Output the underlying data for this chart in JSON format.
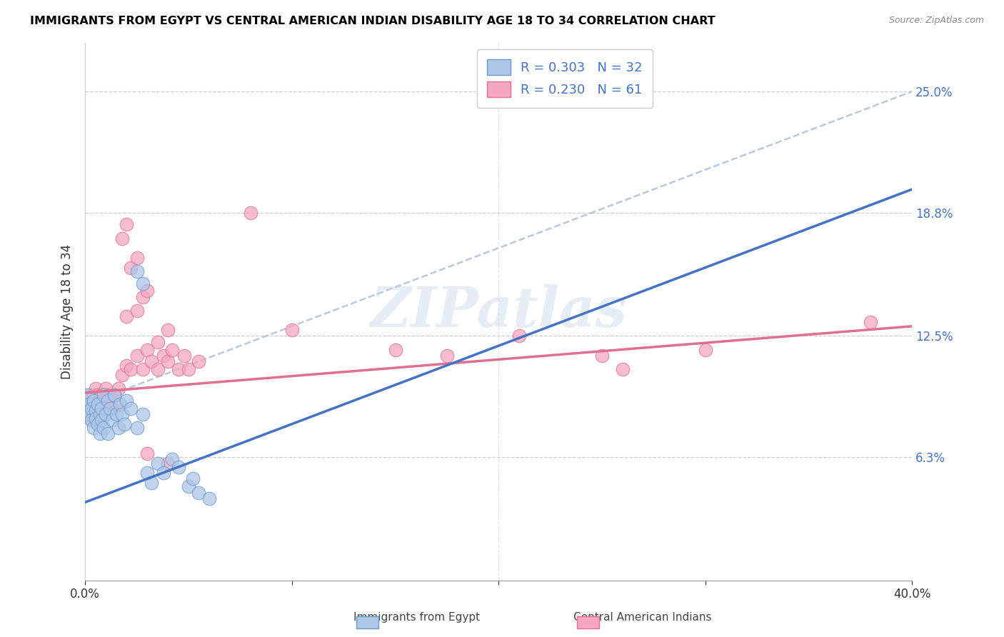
{
  "title": "IMMIGRANTS FROM EGYPT VS CENTRAL AMERICAN INDIAN DISABILITY AGE 18 TO 34 CORRELATION CHART",
  "source": "Source: ZipAtlas.com",
  "ylabel": "Disability Age 18 to 34",
  "ytick_labels": [
    "6.3%",
    "12.5%",
    "18.8%",
    "25.0%"
  ],
  "ytick_values": [
    0.063,
    0.125,
    0.188,
    0.25
  ],
  "xlim": [
    0.0,
    0.4
  ],
  "ylim": [
    0.0,
    0.275
  ],
  "watermark": "ZIPatlas",
  "egypt_color": "#aec6e8",
  "central_color": "#f4a7be",
  "egypt_edge_color": "#6699cc",
  "central_edge_color": "#e07090",
  "egypt_line_color": "#4472c4",
  "central_line_color": "#e07090",
  "dashed_line_color": "#aabbd4",
  "egypt_scatter": [
    [
      0.001,
      0.095
    ],
    [
      0.002,
      0.09
    ],
    [
      0.002,
      0.085
    ],
    [
      0.003,
      0.088
    ],
    [
      0.003,
      0.082
    ],
    [
      0.004,
      0.092
    ],
    [
      0.004,
      0.078
    ],
    [
      0.005,
      0.087
    ],
    [
      0.005,
      0.083
    ],
    [
      0.006,
      0.09
    ],
    [
      0.006,
      0.08
    ],
    [
      0.007,
      0.085
    ],
    [
      0.007,
      0.075
    ],
    [
      0.008,
      0.088
    ],
    [
      0.008,
      0.082
    ],
    [
      0.009,
      0.095
    ],
    [
      0.009,
      0.078
    ],
    [
      0.01,
      0.085
    ],
    [
      0.011,
      0.092
    ],
    [
      0.011,
      0.075
    ],
    [
      0.012,
      0.088
    ],
    [
      0.013,
      0.082
    ],
    [
      0.014,
      0.095
    ],
    [
      0.015,
      0.085
    ],
    [
      0.016,
      0.078
    ],
    [
      0.017,
      0.09
    ],
    [
      0.018,
      0.085
    ],
    [
      0.019,
      0.08
    ],
    [
      0.02,
      0.092
    ],
    [
      0.022,
      0.088
    ],
    [
      0.025,
      0.078
    ],
    [
      0.028,
      0.085
    ],
    [
      0.035,
      0.06
    ],
    [
      0.038,
      0.055
    ],
    [
      0.042,
      0.062
    ],
    [
      0.045,
      0.058
    ],
    [
      0.05,
      0.048
    ],
    [
      0.052,
      0.052
    ],
    [
      0.055,
      0.045
    ],
    [
      0.06,
      0.042
    ],
    [
      0.025,
      0.158
    ],
    [
      0.028,
      0.152
    ],
    [
      0.03,
      0.055
    ],
    [
      0.032,
      0.05
    ]
  ],
  "central_scatter": [
    [
      0.001,
      0.092
    ],
    [
      0.002,
      0.095
    ],
    [
      0.002,
      0.085
    ],
    [
      0.003,
      0.09
    ],
    [
      0.003,
      0.082
    ],
    [
      0.004,
      0.095
    ],
    [
      0.004,
      0.085
    ],
    [
      0.005,
      0.098
    ],
    [
      0.005,
      0.092
    ],
    [
      0.006,
      0.088
    ],
    [
      0.006,
      0.095
    ],
    [
      0.007,
      0.09
    ],
    [
      0.007,
      0.082
    ],
    [
      0.008,
      0.095
    ],
    [
      0.008,
      0.085
    ],
    [
      0.009,
      0.092
    ],
    [
      0.01,
      0.098
    ],
    [
      0.01,
      0.088
    ],
    [
      0.011,
      0.095
    ],
    [
      0.012,
      0.092
    ],
    [
      0.013,
      0.088
    ],
    [
      0.014,
      0.095
    ],
    [
      0.015,
      0.09
    ],
    [
      0.016,
      0.098
    ],
    [
      0.018,
      0.105
    ],
    [
      0.02,
      0.11
    ],
    [
      0.022,
      0.108
    ],
    [
      0.025,
      0.115
    ],
    [
      0.028,
      0.108
    ],
    [
      0.03,
      0.118
    ],
    [
      0.032,
      0.112
    ],
    [
      0.035,
      0.108
    ],
    [
      0.038,
      0.115
    ],
    [
      0.04,
      0.112
    ],
    [
      0.042,
      0.118
    ],
    [
      0.045,
      0.108
    ],
    [
      0.048,
      0.115
    ],
    [
      0.05,
      0.108
    ],
    [
      0.055,
      0.112
    ],
    [
      0.02,
      0.135
    ],
    [
      0.025,
      0.138
    ],
    [
      0.028,
      0.145
    ],
    [
      0.03,
      0.148
    ],
    [
      0.022,
      0.16
    ],
    [
      0.025,
      0.165
    ],
    [
      0.018,
      0.175
    ],
    [
      0.02,
      0.182
    ],
    [
      0.035,
      0.122
    ],
    [
      0.04,
      0.128
    ],
    [
      0.08,
      0.188
    ],
    [
      0.1,
      0.128
    ],
    [
      0.15,
      0.118
    ],
    [
      0.175,
      0.115
    ],
    [
      0.21,
      0.125
    ],
    [
      0.25,
      0.115
    ],
    [
      0.26,
      0.108
    ],
    [
      0.3,
      0.118
    ],
    [
      0.38,
      0.132
    ],
    [
      0.03,
      0.065
    ],
    [
      0.04,
      0.06
    ]
  ],
  "egypt_trendline": [
    [
      0.0,
      0.04
    ],
    [
      0.4,
      0.2
    ]
  ],
  "central_trendline": [
    [
      0.0,
      0.096
    ],
    [
      0.4,
      0.13
    ]
  ],
  "dashed_trendline": [
    [
      0.0,
      0.09
    ],
    [
      0.4,
      0.25
    ]
  ]
}
